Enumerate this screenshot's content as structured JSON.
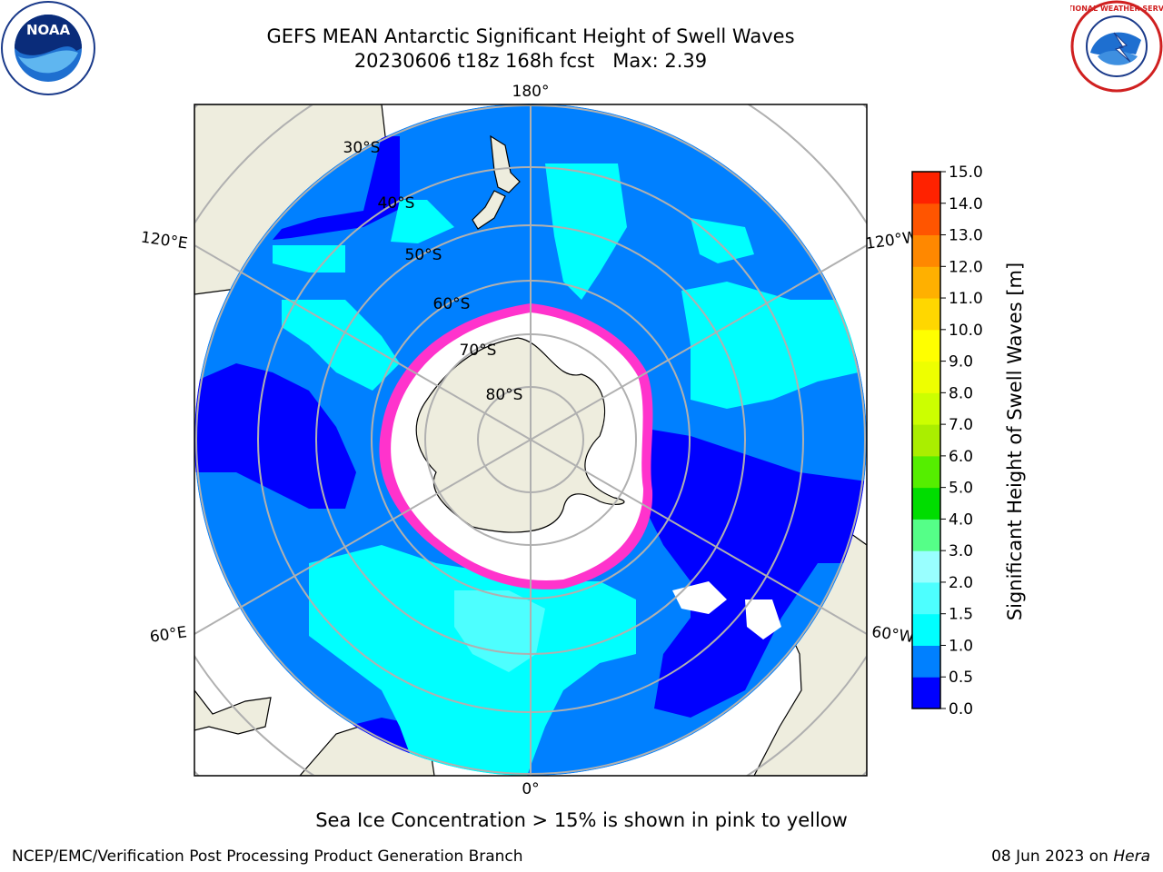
{
  "header": {
    "title_line1": "GEFS MEAN Antarctic Significant Height of Swell Waves",
    "title_line2": "20230606 t18z 168h fcst   Max: 2.39"
  },
  "logos": {
    "left": {
      "icon": "noaa-logo",
      "text": "NOAA"
    },
    "right": {
      "icon": "nws-logo",
      "text": "NATIONAL WEATHER SERVICE"
    }
  },
  "map": {
    "projection": "south-polar-stereographic",
    "longitude_labels": {
      "top": "180°",
      "bottom": "0°",
      "upper_left": "120°E",
      "lower_left": "60°E",
      "upper_right": "120°W",
      "lower_right": "60°W"
    },
    "latitude_labels": [
      "30°S",
      "40°S",
      "50°S",
      "60°S",
      "70°S",
      "80°S"
    ],
    "colors": {
      "ocean_low": "#0000ff",
      "ocean_mid": "#0080ff",
      "ocean_high": "#00ffff",
      "ocean_higher": "#4dffff",
      "land": "#eeedde",
      "sea_ice": "#ffffff",
      "ice_edge": "#ff33cc",
      "graticule": "#b0b0b0"
    }
  },
  "colorbar": {
    "label": "Significant Height of Swell Waves [m]",
    "ticks": [
      "0.0",
      "0.5",
      "1.0",
      "1.5",
      "2.0",
      "3.0",
      "4.0",
      "5.0",
      "6.0",
      "7.0",
      "8.0",
      "9.0",
      "10.0",
      "11.0",
      "12.0",
      "13.0",
      "14.0",
      "15.0"
    ],
    "colors": [
      "#0000ff",
      "#0080ff",
      "#00ffff",
      "#4dffff",
      "#99ffff",
      "#55ff88",
      "#00dd00",
      "#55ee00",
      "#aaee00",
      "#ccff00",
      "#eeff00",
      "#ffff00",
      "#ffd700",
      "#ffb000",
      "#ff8800",
      "#ff5500",
      "#ff2200"
    ]
  },
  "note": "Sea Ice Concentration > 15% is shown in pink to yellow",
  "footer": {
    "left": "NCEP/EMC/Verification Post Processing Product Generation Branch",
    "right_date": "08 Jun 2023 on ",
    "right_host": "Hera"
  }
}
